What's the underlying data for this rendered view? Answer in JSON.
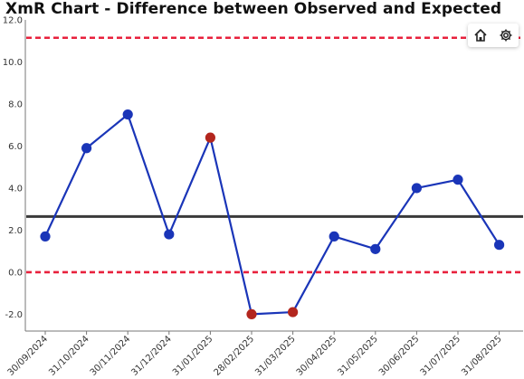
{
  "chart_data": {
    "type": "line",
    "title": "XmR Chart - Difference between Observed and Expected",
    "xlabel": "",
    "ylabel": "",
    "categories": [
      "30/09/2024",
      "31/10/2024",
      "30/11/2024",
      "31/12/2024",
      "31/01/2025",
      "28/02/2025",
      "31/03/2025",
      "30/04/2025",
      "31/05/2025",
      "30/06/2025",
      "31/07/2025",
      "31/08/2025"
    ],
    "series": [
      {
        "values": [
          1.7,
          5.9,
          7.5,
          1.8,
          6.4,
          -2.0,
          -1.9,
          1.7,
          1.1,
          4.0,
          4.4,
          1.3
        ]
      }
    ],
    "point_status": [
      "normal",
      "normal",
      "normal",
      "normal",
      "special",
      "special",
      "special",
      "normal",
      "normal",
      "normal",
      "normal",
      "normal"
    ],
    "center_line": 2.65,
    "upper_limit": 11.15,
    "lower_limit": 0.0,
    "ylim": [
      -2.8,
      12.0
    ],
    "yticks": [
      -2.0,
      0.0,
      2.0,
      4.0,
      6.0,
      8.0,
      10.0,
      12.0
    ],
    "ytick_labels": [
      "-2.0",
      "0.0",
      "2.0",
      "4.0",
      "6.0",
      "8.0",
      "10.0",
      "12.0"
    ],
    "grid": false,
    "legend": "none"
  },
  "colors": {
    "series": "#1a35b8",
    "point": "#1a35b8",
    "special_point": "#b3261e",
    "center_line": "#3a3a3a",
    "limit_line": "#e8213d"
  },
  "toolbar": {
    "icons": [
      "home-icon",
      "gear-icon"
    ]
  }
}
